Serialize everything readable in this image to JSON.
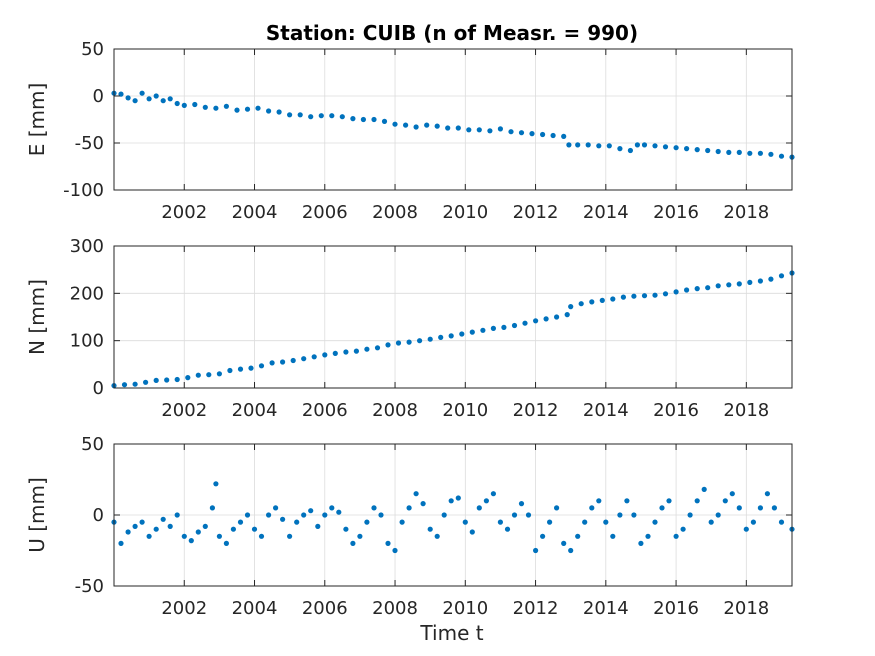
{
  "figure": {
    "title": "Station: CUIB (n of Measr. = 990)",
    "xlabel": "Time t"
  },
  "colors": {
    "marker": "#0072BD",
    "axis": "#262626",
    "grid": "#dcdcdc"
  },
  "chart_data": [
    {
      "type": "scatter",
      "title": "Station: CUIB (n of Measr. = 990)",
      "xlabel": "",
      "ylabel": "E [mm]",
      "xlim": [
        2000.0,
        2019.3
      ],
      "ylim": [
        -100,
        50
      ],
      "xticks": [
        2002,
        2004,
        2006,
        2008,
        2010,
        2012,
        2014,
        2016,
        2018
      ],
      "yticks": [
        -100,
        -50,
        0,
        50
      ],
      "grid": true,
      "series": [
        {
          "x": [
            2000.0,
            2000.2,
            2000.4,
            2000.6,
            2000.8,
            2001.0,
            2001.2,
            2001.4,
            2001.6,
            2001.8,
            2002.0,
            2002.3,
            2002.6,
            2002.9,
            2003.2,
            2003.5,
            2003.8,
            2004.1,
            2004.4,
            2004.7,
            2005.0,
            2005.3,
            2005.6,
            2005.9,
            2006.2,
            2006.5,
            2006.8,
            2007.1,
            2007.4,
            2007.7,
            2008.0,
            2008.3,
            2008.6,
            2008.9,
            2009.2,
            2009.5,
            2009.8,
            2010.1,
            2010.4,
            2010.7,
            2011.0,
            2011.3,
            2011.6,
            2011.9,
            2012.2,
            2012.5,
            2012.8,
            2012.95,
            2013.2,
            2013.5,
            2013.8,
            2014.1,
            2014.4,
            2014.7,
            2014.9,
            2015.1,
            2015.4,
            2015.7,
            2016.0,
            2016.3,
            2016.6,
            2016.9,
            2017.2,
            2017.5,
            2017.8,
            2018.1,
            2018.4,
            2018.7,
            2019.0,
            2019.3
          ],
          "y": [
            3,
            2,
            -2,
            -5,
            3,
            -3,
            0,
            -5,
            -3,
            -8,
            -10,
            -9,
            -12,
            -13,
            -11,
            -15,
            -14,
            -13,
            -16,
            -17,
            -20,
            -20,
            -22,
            -21,
            -21,
            -22,
            -24,
            -25,
            -25,
            -27,
            -30,
            -31,
            -33,
            -31,
            -32,
            -34,
            -34,
            -36,
            -36,
            -37,
            -35,
            -38,
            -39,
            -40,
            -41,
            -42,
            -43,
            -52,
            -52,
            -52,
            -53,
            -53,
            -56,
            -58,
            -52,
            -52,
            -53,
            -54,
            -55,
            -56,
            -57,
            -58,
            -59,
            -60,
            -60,
            -61,
            -61,
            -62,
            -64,
            -65
          ]
        }
      ]
    },
    {
      "type": "scatter",
      "xlabel": "",
      "ylabel": "N [mm]",
      "xlim": [
        2000.0,
        2019.3
      ],
      "ylim": [
        0,
        300
      ],
      "xticks": [
        2002,
        2004,
        2006,
        2008,
        2010,
        2012,
        2014,
        2016,
        2018
      ],
      "yticks": [
        0,
        100,
        200,
        300
      ],
      "grid": true,
      "series": [
        {
          "x": [
            2000.0,
            2000.3,
            2000.6,
            2000.9,
            2001.2,
            2001.5,
            2001.8,
            2002.1,
            2002.4,
            2002.7,
            2003.0,
            2003.3,
            2003.6,
            2003.9,
            2004.2,
            2004.5,
            2004.8,
            2005.1,
            2005.4,
            2005.7,
            2006.0,
            2006.3,
            2006.6,
            2006.9,
            2007.2,
            2007.5,
            2007.8,
            2008.1,
            2008.4,
            2008.7,
            2009.0,
            2009.3,
            2009.6,
            2009.9,
            2010.2,
            2010.5,
            2010.8,
            2011.1,
            2011.4,
            2011.7,
            2012.0,
            2012.3,
            2012.6,
            2012.9,
            2013.0,
            2013.3,
            2013.6,
            2013.9,
            2014.2,
            2014.5,
            2014.8,
            2015.1,
            2015.4,
            2015.7,
            2016.0,
            2016.3,
            2016.6,
            2016.9,
            2017.2,
            2017.5,
            2017.8,
            2018.1,
            2018.4,
            2018.7,
            2019.0,
            2019.3
          ],
          "y": [
            5,
            7,
            8,
            12,
            16,
            17,
            18,
            22,
            27,
            28,
            30,
            37,
            40,
            42,
            47,
            53,
            55,
            58,
            62,
            66,
            70,
            73,
            76,
            78,
            82,
            85,
            91,
            95,
            97,
            100,
            103,
            107,
            110,
            114,
            118,
            122,
            126,
            128,
            132,
            137,
            142,
            146,
            150,
            155,
            172,
            178,
            182,
            185,
            188,
            192,
            194,
            195,
            196,
            199,
            203,
            207,
            210,
            212,
            216,
            218,
            220,
            223,
            226,
            230,
            237,
            243
          ]
        }
      ]
    },
    {
      "type": "scatter",
      "xlabel": "Time t",
      "ylabel": "U [mm]",
      "xlim": [
        2000.0,
        2019.3
      ],
      "ylim": [
        -50,
        50
      ],
      "xticks": [
        2002,
        2004,
        2006,
        2008,
        2010,
        2012,
        2014,
        2016,
        2018
      ],
      "yticks": [
        -50,
        0,
        50
      ],
      "grid": true,
      "series": [
        {
          "x": [
            2000.0,
            2000.2,
            2000.4,
            2000.6,
            2000.8,
            2001.0,
            2001.2,
            2001.4,
            2001.6,
            2001.8,
            2002.0,
            2002.2,
            2002.4,
            2002.6,
            2002.8,
            2002.9,
            2003.0,
            2003.2,
            2003.4,
            2003.6,
            2003.8,
            2004.0,
            2004.2,
            2004.4,
            2004.6,
            2004.8,
            2005.0,
            2005.2,
            2005.4,
            2005.6,
            2005.8,
            2006.0,
            2006.2,
            2006.4,
            2006.6,
            2006.8,
            2007.0,
            2007.2,
            2007.4,
            2007.6,
            2007.8,
            2008.0,
            2008.2,
            2008.4,
            2008.6,
            2008.8,
            2009.0,
            2009.2,
            2009.4,
            2009.6,
            2009.8,
            2010.0,
            2010.2,
            2010.4,
            2010.6,
            2010.8,
            2011.0,
            2011.2,
            2011.4,
            2011.6,
            2011.8,
            2012.0,
            2012.2,
            2012.4,
            2012.6,
            2012.8,
            2013.0,
            2013.2,
            2013.4,
            2013.6,
            2013.8,
            2014.0,
            2014.2,
            2014.4,
            2014.6,
            2014.8,
            2015.0,
            2015.2,
            2015.4,
            2015.6,
            2015.8,
            2016.0,
            2016.2,
            2016.4,
            2016.6,
            2016.8,
            2017.0,
            2017.2,
            2017.4,
            2017.6,
            2017.8,
            2018.0,
            2018.2,
            2018.4,
            2018.6,
            2018.8,
            2019.0,
            2019.3
          ],
          "y": [
            -5,
            -20,
            -12,
            -8,
            -5,
            -15,
            -10,
            -3,
            -8,
            0,
            -15,
            -18,
            -12,
            -8,
            5,
            22,
            -15,
            -20,
            -10,
            -5,
            0,
            -10,
            -15,
            0,
            5,
            -3,
            -15,
            -5,
            0,
            3,
            -8,
            0,
            5,
            2,
            -10,
            -20,
            -15,
            -5,
            5,
            0,
            -20,
            -25,
            -5,
            5,
            15,
            8,
            -10,
            -15,
            0,
            10,
            12,
            -5,
            -12,
            5,
            10,
            15,
            -5,
            -10,
            0,
            8,
            0,
            -25,
            -15,
            -5,
            5,
            -20,
            -25,
            -15,
            -5,
            5,
            10,
            -5,
            -15,
            0,
            10,
            0,
            -20,
            -15,
            -5,
            5,
            10,
            -15,
            -10,
            0,
            10,
            18,
            -5,
            0,
            10,
            15,
            5,
            -10,
            -5,
            5,
            15,
            5,
            -5,
            -10
          ]
        }
      ]
    }
  ]
}
